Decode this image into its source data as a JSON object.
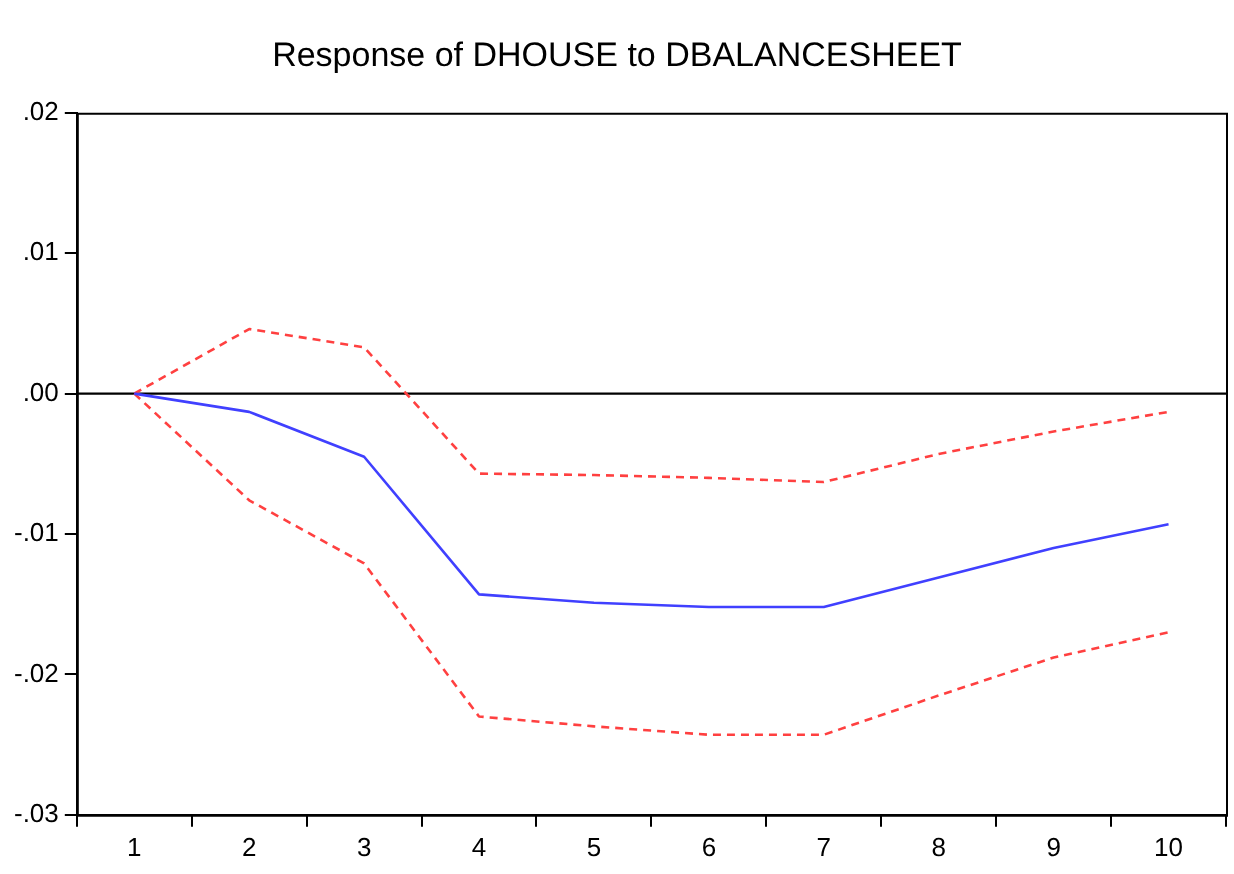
{
  "chart_data": {
    "type": "line",
    "title": "Response of DHOUSE to DBALANCESHEET",
    "categories": [
      "1",
      "2",
      "3",
      "4",
      "5",
      "6",
      "7",
      "8",
      "9",
      "10"
    ],
    "series": [
      {
        "color": "#4040ff",
        "line_style": "solid",
        "values": [
          0,
          -0.0013,
          -0.0045,
          -0.0143,
          -0.0149,
          -0.0152,
          -0.0152,
          -0.0131,
          -0.011,
          -0.0093
        ]
      },
      {
        "color": "#ff4040",
        "line_style": "dashed",
        "values": [
          0,
          0.0046,
          0.0033,
          -0.0057,
          -0.0058,
          -0.006,
          -0.0063,
          -0.0043,
          -0.0027,
          -0.0013
        ]
      },
      {
        "color": "#ff4040",
        "line_style": "dashed",
        "values": [
          0,
          -0.0076,
          -0.0121,
          -0.023,
          -0.0237,
          -0.0243,
          -0.0243,
          -0.0215,
          -0.0188,
          -0.017
        ]
      }
    ],
    "ylim": [
      -0.03,
      0.02
    ],
    "yticks": [
      {
        "value": 0.02,
        "label": ".02"
      },
      {
        "value": 0.01,
        "label": ".01"
      },
      {
        "value": 0,
        "label": ".00"
      },
      {
        "value": -0.01,
        "label": "-.01"
      },
      {
        "value": -0.02,
        "label": "-.02"
      },
      {
        "value": -0.03,
        "label": "-.03"
      }
    ],
    "ref_lines": [
      {
        "axis": "y",
        "value": 0,
        "color": "#000000"
      }
    ],
    "grid": false,
    "legend": false,
    "marker": "none"
  }
}
